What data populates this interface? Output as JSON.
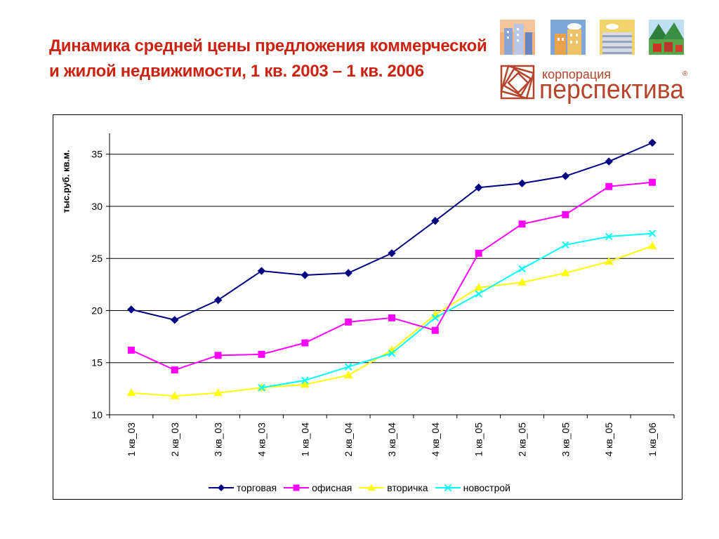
{
  "title": "Динамика средней цены предложения коммерческой и жилой недвижимости, 1 кв. 2003 – 1 кв. 2006",
  "logo": {
    "line1": "корпорация",
    "line2": "перспектива",
    "registered": "®",
    "tile_icons": [
      "city-buildings-icon",
      "house-buildings-icon",
      "round-tower-icon",
      "forest-houses-icon"
    ]
  },
  "colors": {
    "title": "#cc2211",
    "logo_brand": "#b5442d",
    "torgovaya": "#000080",
    "ofisnaya": "#ff00ff",
    "vtorichka": "#ffff00",
    "novostroy": "#00ffff"
  },
  "chart_data": {
    "type": "line",
    "title": "",
    "xlabel": "",
    "ylabel": "тыс.руб. кв.м.",
    "ylim": [
      10,
      37
    ],
    "yticks": [
      10,
      15,
      20,
      25,
      30,
      35
    ],
    "grid": "horizontal",
    "legend_position": "bottom",
    "categories": [
      "1 кв_03",
      "2 кв_03",
      "3 кв_03",
      "4 кв_03",
      "1 кв_04",
      "2 кв_04",
      "3 кв_04",
      "4 кв_04",
      "1 кв_05",
      "2 кв_05",
      "3 кв_05",
      "4 кв_05",
      "1 кв_06"
    ],
    "series": [
      {
        "name": "торговая",
        "color": "#000080",
        "marker": "diamond",
        "values": [
          20.1,
          19.1,
          21.0,
          23.8,
          23.4,
          23.6,
          25.5,
          28.6,
          31.8,
          32.2,
          32.9,
          34.3,
          36.1
        ]
      },
      {
        "name": "офисная",
        "color": "#ff00ff",
        "marker": "square",
        "values": [
          16.2,
          14.3,
          15.7,
          15.8,
          16.9,
          18.9,
          19.3,
          18.1,
          25.5,
          28.3,
          29.2,
          31.9,
          32.3
        ]
      },
      {
        "name": "вторичка",
        "color": "#ffff00",
        "marker": "triangle",
        "values": [
          12.1,
          11.8,
          12.1,
          12.6,
          12.9,
          13.8,
          16.2,
          19.6,
          22.2,
          22.7,
          23.6,
          24.7,
          26.2
        ]
      },
      {
        "name": "новострой",
        "color": "#00ffff",
        "marker": "x",
        "values": [
          null,
          null,
          null,
          12.6,
          13.3,
          14.6,
          15.9,
          19.3,
          21.6,
          24.0,
          26.3,
          27.1,
          27.4
        ]
      }
    ]
  }
}
